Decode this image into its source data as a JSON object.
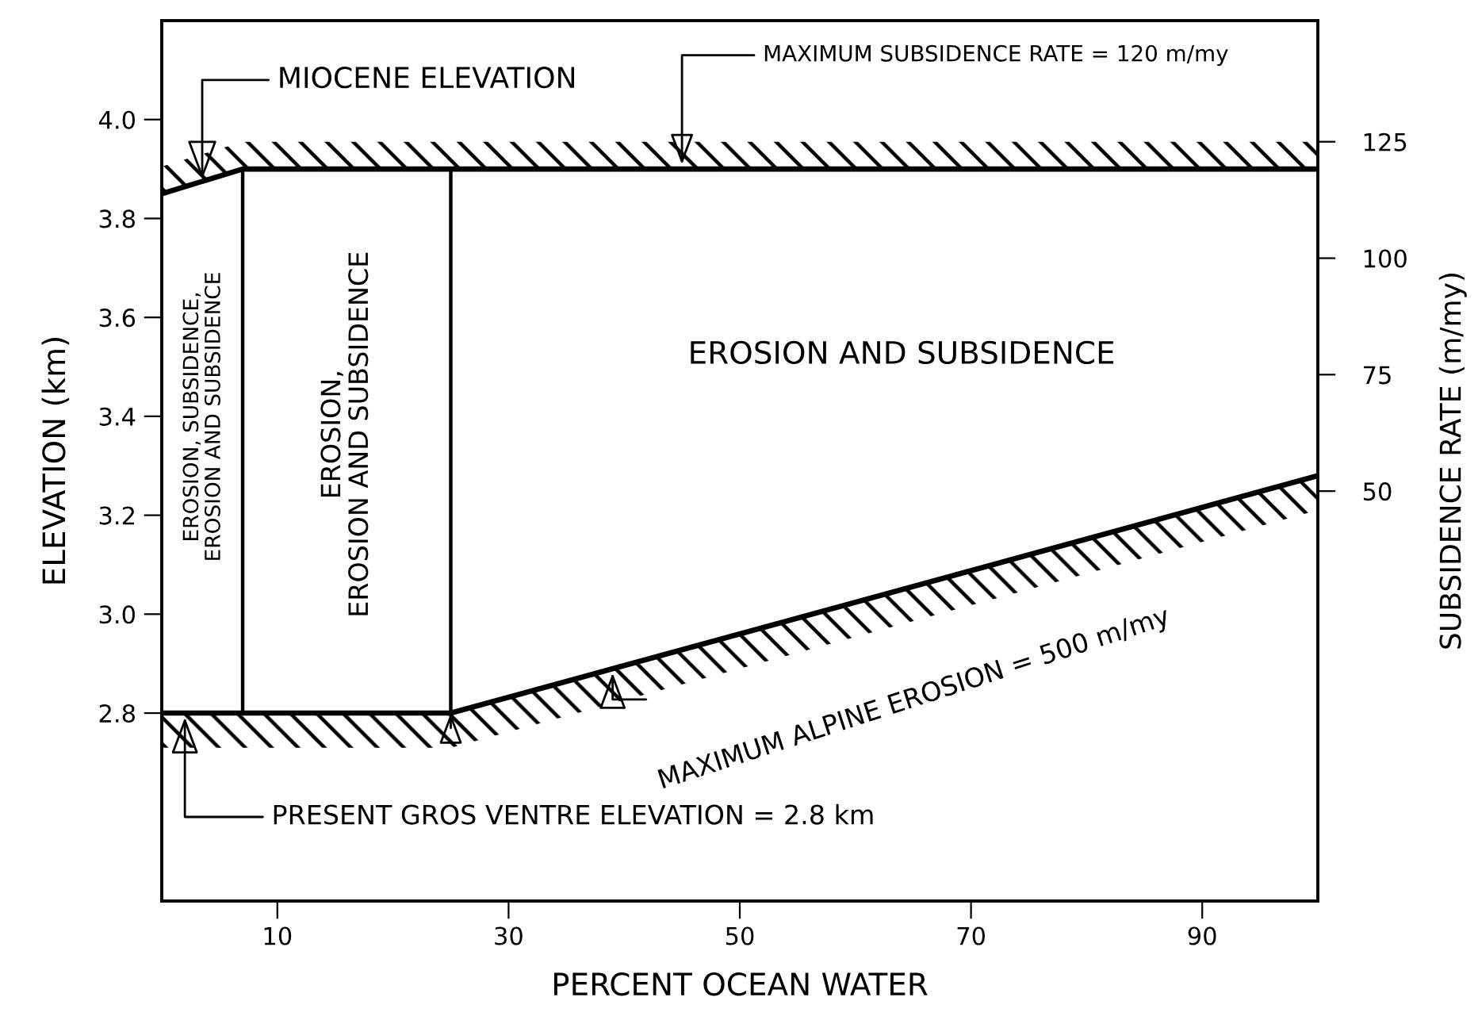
{
  "chart_data": {
    "type": "line",
    "xlabel": "PERCENT OCEAN WATER",
    "ylabel": "ELEVATION (km)",
    "y2label": "SUBSIDENCE RATE (m/my)",
    "xlim": [
      0,
      100
    ],
    "xticks": [
      10,
      30,
      50,
      70,
      90
    ],
    "ylim": [
      2.42,
      4.2
    ],
    "yticks": [
      2.8,
      {
        "value": 3,
        "label": "3.0"
      },
      3.2,
      3.4,
      3.6,
      3.8,
      {
        "value": 4,
        "label": "4.0"
      }
    ],
    "y2lim": [
      -38,
      151
    ],
    "y2ticks": [
      50,
      75,
      100,
      125
    ],
    "grid": false,
    "legend": false,
    "marker": "none",
    "line_style": "solid",
    "series": [
      {
        "color": "#000000",
        "x": [
          0,
          7,
          100
        ],
        "values": [
          3.85,
          3.9,
          3.9
        ]
      },
      {
        "color": "#000000",
        "x": [
          0,
          25,
          100
        ],
        "values": [
          2.8,
          2.8,
          3.28
        ]
      },
      {
        "color": "#000000",
        "x": [
          7,
          7
        ],
        "values": [
          2.8,
          3.9
        ]
      },
      {
        "color": "#000000",
        "x": [
          25,
          25
        ],
        "values": [
          2.8,
          3.9
        ]
      }
    ],
    "annotations": [
      {
        "text": "MIOCENE ELEVATION",
        "x": 3.5,
        "y": 3.87
      },
      {
        "text": "MAXIMUM SUBSIDENCE RATE = 120 m/my",
        "x": 45,
        "y": 3.9
      },
      {
        "text": "PRESENT GROS VENTRE ELEVATION = 2.8 km",
        "x": 2,
        "y": 2.8
      },
      {
        "text": "MAXIMUM ALPINE EROSION = 500 m/my",
        "x": 39,
        "y": 2.89
      },
      "EROSION AND SUBSIDENCE",
      "EROSION,\nEROSION AND SUBSIDENCE",
      "EROSION, SUBSIDENCE,\nEROSION AND SUBSIDENCE"
    ]
  }
}
